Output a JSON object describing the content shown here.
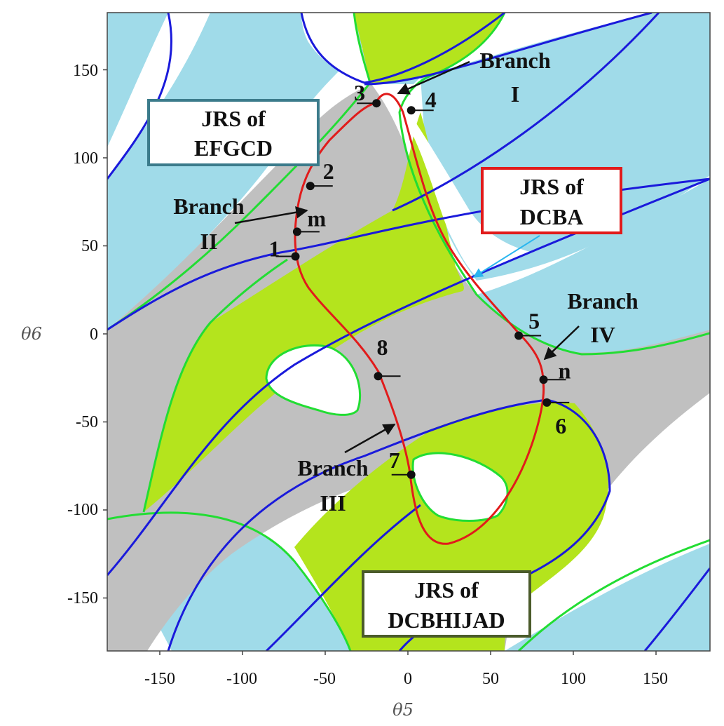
{
  "axes": {
    "xlabel": "θ5",
    "ylabel": "θ6",
    "xticks": [
      "-150",
      "-100",
      "-50",
      "0",
      "50",
      "100",
      "150"
    ],
    "yticks": [
      "150",
      "100",
      "50",
      "0",
      "-50",
      "-100",
      "-150"
    ],
    "xlim": [
      -180,
      180
    ],
    "ylim": [
      -180,
      180
    ]
  },
  "colors": {
    "light_blue_region": "#a0dbe9",
    "gray_region": "#c0c0c0",
    "yellow_green_region": "#b4e41d",
    "blue_curve": "#1a1adb",
    "green_curve": "#22dd33",
    "red_curve": "#e11b1b",
    "arrow_cyan": "#2ab6ef"
  },
  "boxes": {
    "efgcd": {
      "line1": "JRS of",
      "line2": "EFGCD",
      "border": "#3b7b8b"
    },
    "dcba": {
      "line1": "JRS of",
      "line2": "DCBA",
      "border": "#e11b1b"
    },
    "dcbhijad": {
      "line1": "JRS of",
      "line2": "DCBHIJAD",
      "border": "#4b5b2b"
    }
  },
  "branches": {
    "b1": {
      "line1": "Branch",
      "line2": "I"
    },
    "b2": {
      "line1": "Branch",
      "line2": "II"
    },
    "b3": {
      "line1": "Branch",
      "line2": "III"
    },
    "b4": {
      "line1": "Branch",
      "line2": "IV"
    }
  },
  "points": [
    {
      "label": "1",
      "theta5": -68,
      "theta6": 44
    },
    {
      "label": "2",
      "theta5": -59,
      "theta6": 84
    },
    {
      "label": "3",
      "theta5": -19,
      "theta6": 131
    },
    {
      "label": "4",
      "theta5": 2,
      "theta6": 127
    },
    {
      "label": "m",
      "theta5": -67,
      "theta6": 58
    },
    {
      "label": "5",
      "theta5": 67,
      "theta6": -1
    },
    {
      "label": "n",
      "theta5": 82,
      "theta6": -26
    },
    {
      "label": "6",
      "theta5": 84,
      "theta6": -39
    },
    {
      "label": "7",
      "theta5": 2,
      "theta6": -80
    },
    {
      "label": "8",
      "theta5": -18,
      "theta6": -24
    }
  ]
}
